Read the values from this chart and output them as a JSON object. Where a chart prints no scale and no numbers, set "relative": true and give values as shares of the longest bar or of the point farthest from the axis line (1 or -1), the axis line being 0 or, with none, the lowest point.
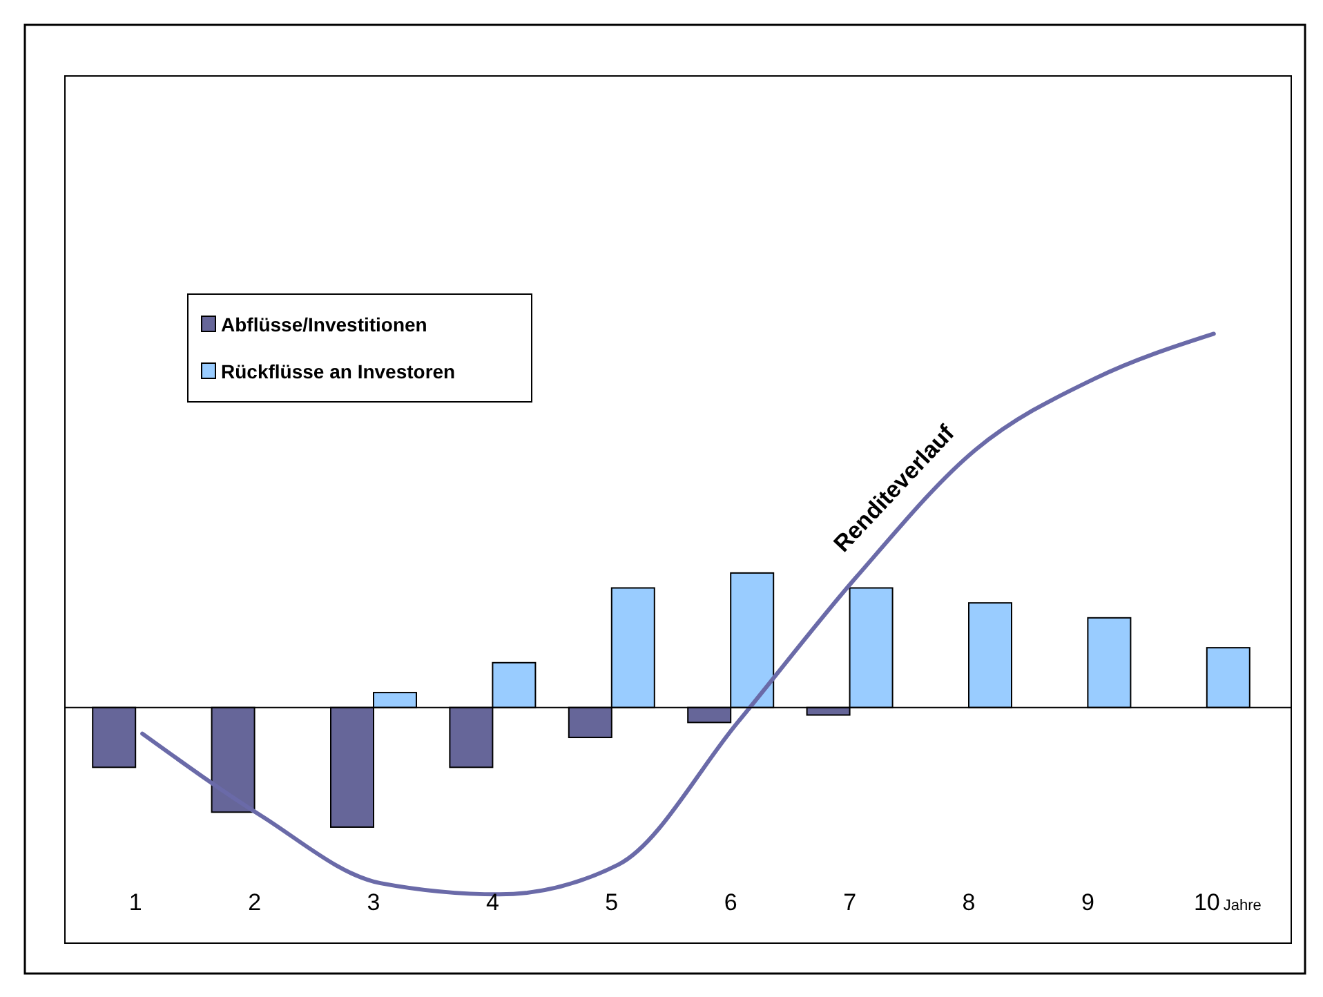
{
  "chart_data": {
    "type": "bar",
    "relative": true,
    "xlabel": "Jahre",
    "categories": [
      "1",
      "2",
      "3",
      "4",
      "5",
      "6",
      "7",
      "8",
      "9",
      "10"
    ],
    "legend": "top left",
    "series": [
      {
        "name": "Abflüsse/Investitionen",
        "color": "#666699",
        "values": [
          -0.16,
          -0.28,
          -0.32,
          -0.16,
          -0.08,
          -0.04,
          -0.02,
          null,
          null,
          null
        ]
      },
      {
        "name": "Rückflüsse an Investoren",
        "color": "#99ccff",
        "values": [
          null,
          null,
          0.04,
          0.12,
          0.32,
          0.36,
          0.32,
          0.28,
          0.24,
          0.16
        ]
      },
      {
        "name": "Renditeverlauf",
        "type": "line",
        "color": "#6a6aa8",
        "values": [
          -0.07,
          -0.29,
          -0.47,
          -0.5,
          -0.42,
          -0.04,
          0.35,
          0.69,
          0.88,
          1
        ]
      }
    ]
  }
}
